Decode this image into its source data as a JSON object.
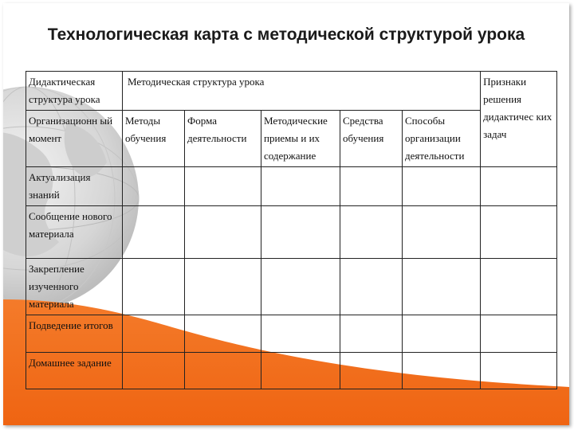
{
  "title": "Технологическая карта с методической структурой урока",
  "table": {
    "header_left": "Дидактическая структура урока",
    "header_method": "Методическая структура урока",
    "header_right": "Признаки решения дидактичес ких задач",
    "sub_first_stage": "Организационн ый момент",
    "sub_columns": [
      "Методы обучения",
      "Форма деятельности",
      "Методические приемы и их содержание",
      "Средства обучения",
      "Способы организации деятельности"
    ],
    "stages": [
      "Актуализация знаний",
      "Сообщение нового материала",
      "Закрепление изученного материала",
      "Подведение итогов",
      "Домашнее задание"
    ]
  },
  "colors": {
    "accent_orange": "#f26a1b",
    "globe_gray": "#c8c8c8",
    "text": "#111111"
  }
}
